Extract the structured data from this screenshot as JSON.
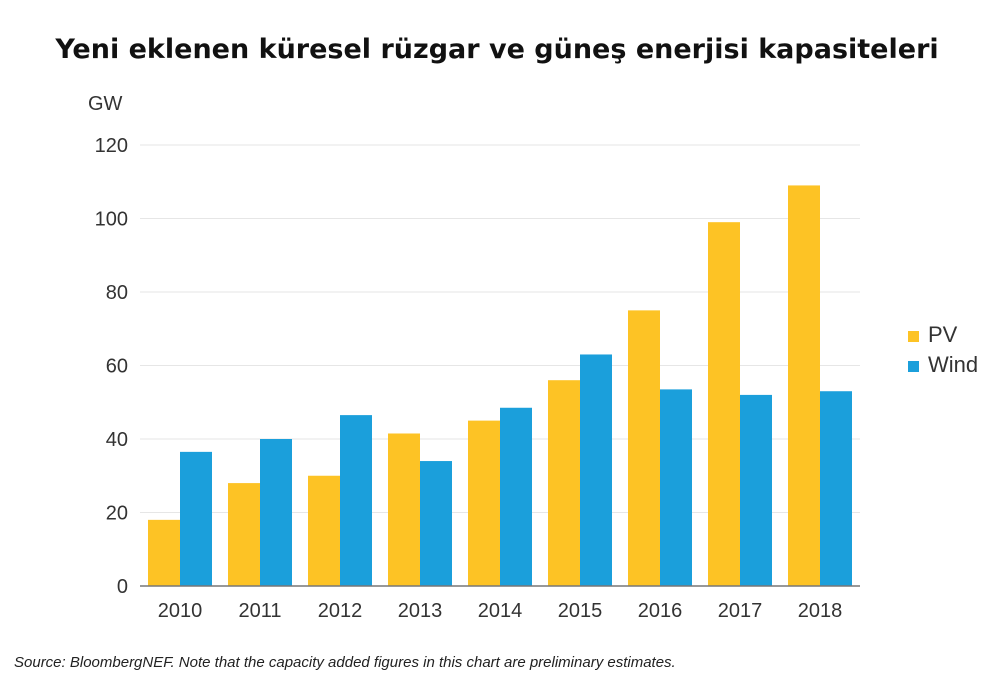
{
  "chart_data": {
    "type": "bar",
    "title": "Yeni eklenen küresel rüzgar ve güneş enerjisi kapasiteleri",
    "unit_label": "GW",
    "categories": [
      "2010",
      "2011",
      "2012",
      "2013",
      "2014",
      "2015",
      "2016",
      "2017",
      "2018"
    ],
    "series": [
      {
        "name": "PV",
        "color": "#FDC325",
        "values": [
          18,
          28,
          30,
          41.5,
          45,
          56,
          75,
          99,
          109
        ]
      },
      {
        "name": "Wind",
        "color": "#1B9FDB",
        "values": [
          36.5,
          40,
          46.5,
          34,
          48.5,
          63,
          53.5,
          52,
          53
        ]
      }
    ],
    "ylim": [
      0,
      120
    ],
    "yticks": [
      0,
      20,
      40,
      60,
      80,
      100,
      120
    ],
    "grid": true,
    "legend_position": "right"
  },
  "footnote": "Source: BloombergNEF. Note that the capacity added figures in this chart are preliminary estimates."
}
